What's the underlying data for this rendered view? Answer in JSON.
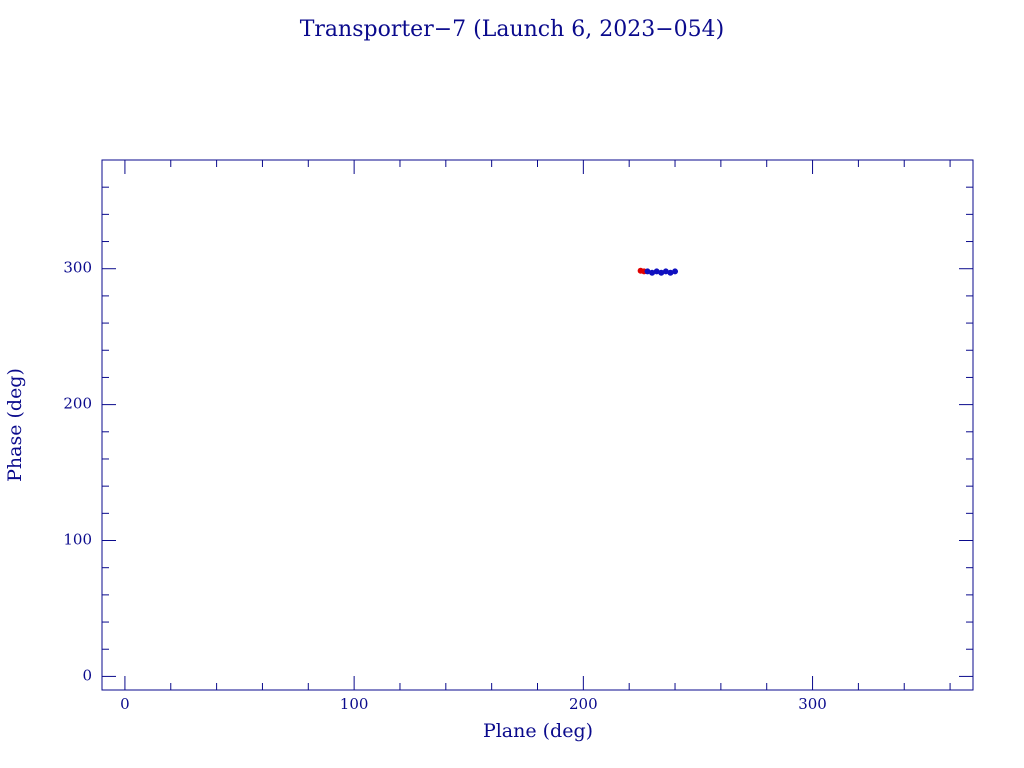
{
  "chart_data": {
    "type": "scatter",
    "title": "Transporter−7 (Launch 6, 2023−054)",
    "x_label": "Plane (deg)",
    "y_label": "Phase (deg)",
    "xlim": [
      -10,
      370
    ],
    "ylim": [
      -10,
      380
    ],
    "xticks": [
      0,
      100,
      200,
      300
    ],
    "yticks": [
      0,
      100,
      200,
      300
    ],
    "xminorticks": [
      20,
      40,
      60,
      80,
      120,
      140,
      160,
      180,
      220,
      240,
      260,
      280,
      320,
      340,
      360
    ],
    "yminorticks": [
      20,
      40,
      60,
      80,
      120,
      140,
      160,
      180,
      220,
      240,
      260,
      280,
      320,
      340,
      360
    ],
    "series": [
      {
        "color": "#e00000",
        "x": [
          225,
          226.5
        ],
        "values": [
          298.5,
          298
        ]
      },
      {
        "color": "#1010c0",
        "x": [
          228,
          230,
          232,
          234,
          236,
          238,
          240
        ],
        "values": [
          298,
          297,
          298,
          297,
          298,
          297,
          298
        ]
      }
    ]
  }
}
